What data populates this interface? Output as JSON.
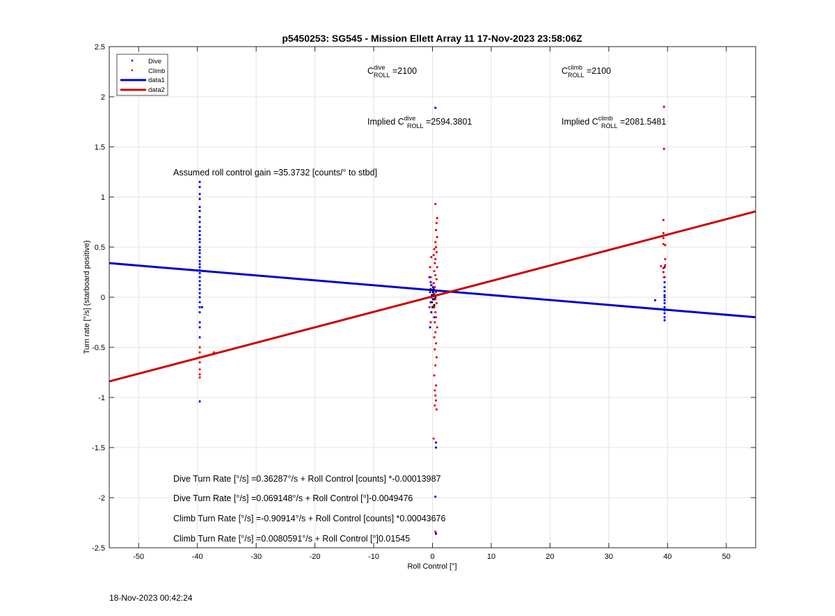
{
  "chart_data": {
    "type": "scatter",
    "title": "p5450253: SG545 - Mission Ellett Array 11 17-Nov-2023 23:58:06Z",
    "xlabel": "Roll Control [°]",
    "ylabel": "Turn rate [°/s] (starboard positive)",
    "xlim": [
      -55,
      55
    ],
    "ylim": [
      -2.5,
      2.5
    ],
    "xticks": [
      -50,
      -40,
      -30,
      -20,
      -10,
      0,
      10,
      20,
      30,
      40,
      50
    ],
    "yticks": [
      -2.5,
      -2,
      -1.5,
      -1,
      -0.5,
      0,
      0.5,
      1,
      1.5,
      2,
      2.5
    ],
    "xtick_labels": [
      "-50",
      "-40",
      "-30",
      "-20",
      "-10",
      "0",
      "10",
      "20",
      "30",
      "40",
      "50"
    ],
    "ytick_labels": [
      "-2.5",
      "-2",
      "-1.5",
      "-1",
      "-0.5",
      "0",
      "0.5",
      "1",
      "1.5",
      "2",
      "2.5"
    ],
    "grid": true,
    "legend_position": "top-left",
    "legend": [
      {
        "label": "Dive",
        "kind": "marker",
        "color": "#0000ee"
      },
      {
        "label": "Climb",
        "kind": "marker",
        "color": "#ee0000"
      },
      {
        "label": "data1",
        "kind": "line",
        "color": "#0000cc"
      },
      {
        "label": "data2",
        "kind": "line",
        "color": "#cc0000"
      }
    ],
    "series": [
      {
        "name": "Dive",
        "kind": "scatter",
        "color": "#0000ee",
        "points": [
          [
            -39.6,
            1.15
          ],
          [
            -39.6,
            1.1
          ],
          [
            -39.6,
            1.03
          ],
          [
            -39.6,
            0.98
          ],
          [
            -39.6,
            0.9
          ],
          [
            -39.6,
            0.86
          ],
          [
            -39.6,
            0.8
          ],
          [
            -39.6,
            0.75
          ],
          [
            -39.6,
            0.7
          ],
          [
            -39.6,
            0.66
          ],
          [
            -39.6,
            0.62
          ],
          [
            -39.6,
            0.58
          ],
          [
            -39.6,
            0.55
          ],
          [
            -39.6,
            0.5
          ],
          [
            -39.6,
            0.47
          ],
          [
            -39.6,
            0.44
          ],
          [
            -39.6,
            0.4
          ],
          [
            -39.6,
            0.36
          ],
          [
            -39.6,
            0.33
          ],
          [
            -39.6,
            0.3
          ],
          [
            -39.6,
            0.27
          ],
          [
            -39.6,
            0.24
          ],
          [
            -39.6,
            0.2
          ],
          [
            -39.6,
            0.16
          ],
          [
            -39.6,
            0.12
          ],
          [
            -39.6,
            0.08
          ],
          [
            -39.6,
            0.04
          ],
          [
            -39.6,
            0.0
          ],
          [
            -39.6,
            -0.05
          ],
          [
            -39.6,
            -0.1
          ],
          [
            -39.2,
            -0.1
          ],
          [
            -39.6,
            -0.15
          ],
          [
            -39.6,
            -0.25
          ],
          [
            -39.6,
            -0.3
          ],
          [
            -39.6,
            -0.4
          ],
          [
            -39.6,
            -1.04
          ],
          [
            -0.5,
            0.2
          ],
          [
            -0.3,
            0.15
          ],
          [
            -0.2,
            0.12
          ],
          [
            0.1,
            0.1
          ],
          [
            0.2,
            0.08
          ],
          [
            -0.4,
            0.05
          ],
          [
            0.3,
            0.03
          ],
          [
            -0.1,
            0.02
          ],
          [
            0.5,
            0.0
          ],
          [
            0.1,
            -0.02
          ],
          [
            -0.3,
            -0.05
          ],
          [
            0.2,
            -0.1
          ],
          [
            -0.2,
            -0.15
          ],
          [
            0.3,
            -0.2
          ],
          [
            -0.4,
            -0.3
          ],
          [
            0.5,
            1.89
          ],
          [
            0.6,
            -1.45
          ],
          [
            0.6,
            -1.5
          ],
          [
            0.5,
            -1.99
          ],
          [
            0.6,
            -2.36
          ],
          [
            39.5,
            0.3
          ],
          [
            39.5,
            0.2
          ],
          [
            39.5,
            0.15
          ],
          [
            39.5,
            0.1
          ],
          [
            39.5,
            0.06
          ],
          [
            39.5,
            0.02
          ],
          [
            39.5,
            0.0
          ],
          [
            39.5,
            -0.03
          ],
          [
            39.5,
            -0.06
          ],
          [
            39.5,
            -0.1
          ],
          [
            39.5,
            -0.13
          ],
          [
            39.5,
            -0.16
          ],
          [
            39.5,
            -0.2
          ],
          [
            39.5,
            -0.23
          ],
          [
            37.9,
            -0.03
          ]
        ]
      },
      {
        "name": "Climb",
        "kind": "scatter",
        "color": "#ee0000",
        "points": [
          [
            -39.6,
            -0.5
          ],
          [
            -39.6,
            -0.55
          ],
          [
            -39.6,
            -0.6
          ],
          [
            -39.6,
            -0.65
          ],
          [
            -39.6,
            -0.72
          ],
          [
            -39.6,
            -0.77
          ],
          [
            -39.6,
            -0.8
          ],
          [
            -37.2,
            -0.55
          ],
          [
            0.5,
            0.93
          ],
          [
            0.8,
            0.79
          ],
          [
            0.7,
            0.74
          ],
          [
            0.6,
            0.67
          ],
          [
            0.8,
            0.6
          ],
          [
            0.5,
            0.55
          ],
          [
            0.6,
            0.5
          ],
          [
            0.3,
            0.48
          ],
          [
            0.7,
            0.45
          ],
          [
            0.2,
            0.42
          ],
          [
            0.5,
            0.38
          ],
          [
            0.4,
            0.34
          ],
          [
            0.8,
            0.3
          ],
          [
            0.3,
            0.26
          ],
          [
            0.5,
            0.22
          ],
          [
            0.7,
            0.18
          ],
          [
            0.2,
            0.14
          ],
          [
            0.4,
            0.1
          ],
          [
            0.6,
            0.05
          ],
          [
            0.3,
            0.02
          ],
          [
            0.5,
            -0.02
          ],
          [
            0.7,
            -0.06
          ],
          [
            0.3,
            -0.1
          ],
          [
            0.5,
            -0.15
          ],
          [
            0.6,
            -0.2
          ],
          [
            0.4,
            -0.25
          ],
          [
            0.8,
            -0.3
          ],
          [
            0.5,
            -0.35
          ],
          [
            0.3,
            -0.4
          ],
          [
            0.6,
            -0.46
          ],
          [
            0.4,
            -0.52
          ],
          [
            0.7,
            -0.6
          ],
          [
            0.5,
            -0.68
          ],
          [
            0.3,
            -0.78
          ],
          [
            0.6,
            -0.88
          ],
          [
            0.4,
            -0.93
          ],
          [
            0.5,
            -0.98
          ],
          [
            0.6,
            -1.03
          ],
          [
            0.4,
            -1.08
          ],
          [
            0.7,
            -1.12
          ],
          [
            0.2,
            -1.41
          ],
          [
            0.5,
            -2.34
          ],
          [
            -0.2,
            0.4
          ],
          [
            -0.4,
            0.3
          ],
          [
            -0.3,
            0.2
          ],
          [
            -0.5,
            -0.1
          ],
          [
            -0.3,
            -0.25
          ],
          [
            39.4,
            1.9
          ],
          [
            39.4,
            1.48
          ],
          [
            39.3,
            0.77
          ],
          [
            39.3,
            0.64
          ],
          [
            39.3,
            0.59
          ],
          [
            39.3,
            0.53
          ],
          [
            39.6,
            0.52
          ],
          [
            39.6,
            0.38
          ],
          [
            39.6,
            0.32
          ],
          [
            39.3,
            0.29
          ],
          [
            38.9,
            0.31
          ],
          [
            39.3,
            0.25
          ],
          [
            39.4,
            0.2
          ]
        ]
      },
      {
        "name": "Climb",
        "kind": "scatter",
        "color": "#000000",
        "points": [
          [
            -0.2,
            0.0
          ],
          [
            0.0,
            0.02
          ],
          [
            0.2,
            -0.02
          ],
          [
            -0.1,
            -0.05
          ],
          [
            0.1,
            0.05
          ],
          [
            0.3,
            -0.08
          ],
          [
            -0.3,
            0.08
          ],
          [
            0.0,
            -0.1
          ]
        ]
      },
      {
        "name": "data1",
        "kind": "line",
        "color": "#0000cc",
        "x": [
          -55,
          55
        ],
        "y": [
          0.34,
          -0.2
        ]
      },
      {
        "name": "data2",
        "kind": "line",
        "color": "#cc0000",
        "x": [
          -55,
          55
        ],
        "y": [
          -0.84,
          0.856
        ]
      }
    ],
    "annotations": {
      "cdive": {
        "base": "C",
        "sup": "dive",
        "sub": "ROLL",
        "value": " =2100"
      },
      "cclimb": {
        "base": "C",
        "sup": "climb",
        "sub": "ROLL",
        "value": " =2100"
      },
      "impl_dive": {
        "prefix": "Implied C",
        "sup": "dive",
        "sub": "ROLL",
        "value": " =2594.3801"
      },
      "impl_climb": {
        "prefix": "Implied C",
        "sup": "climb",
        "sub": "ROLL",
        "value": " =2081.5481"
      },
      "gain": "Assumed roll control gain =35.3732 [counts/° to stbd]",
      "eq1": "Dive Turn Rate [°/s] =0.36287°/s + Roll Control [counts] *-0.00013987",
      "eq2": "Dive Turn Rate [°/s] =0.069148°/s + Roll Control [°]-0.0049476",
      "eq3": "Climb Turn Rate [°/s] =-0.90914°/s + Roll Control [counts] *0.00043676",
      "eq4": "Climb Turn Rate [°/s] =0.0080591°/s + Roll Control [°]0.01545"
    }
  },
  "footer_timestamp": "18-Nov-2023 00:42:24"
}
